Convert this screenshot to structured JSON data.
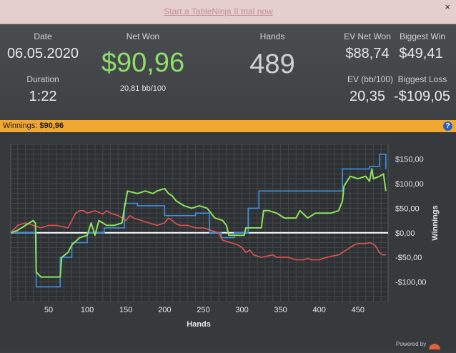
{
  "promo": {
    "link_text": "Start a TableNinja II trial now",
    "close_label": "×"
  },
  "stats": {
    "date_label": "Date",
    "date": "06.05.2020",
    "duration_label": "Duration",
    "duration": "1:22",
    "net_won_label": "Net Won",
    "net_won": "$90,96",
    "net_won_bb": "20,81 bb/100",
    "hands_label": "Hands",
    "hands": "489",
    "ev_net_won_label": "EV Net Won",
    "ev_net_won": "$88,74",
    "biggest_win_label": "Biggest Win",
    "biggest_win": "$49,41",
    "ev_bb_label": "EV (bb/100)",
    "ev_bb": "20,35",
    "biggest_loss_label": "Biggest Loss",
    "biggest_loss": "-$109,05",
    "net_won_color": "#8fdf6a"
  },
  "winnings_bar": {
    "label": "Winnings:",
    "value": "$90,96",
    "help_icon": "help-icon",
    "color": "#f0a832"
  },
  "chart_data": {
    "type": "line",
    "xlabel": "Hands",
    "ylabel": "Winnings",
    "xlim": [
      1,
      489
    ],
    "ylim": [
      -140,
      180
    ],
    "x_ticks": [
      50,
      100,
      150,
      200,
      250,
      300,
      350,
      400,
      450
    ],
    "x_tick_labels": [
      "50",
      "100",
      "150",
      "200",
      "250",
      "300",
      "350",
      "400",
      "450"
    ],
    "y_ticks": [
      150,
      100,
      50,
      0,
      -50,
      -100
    ],
    "y_tick_labels": [
      "$150,00",
      "$100,00",
      "$50,00",
      "$0,00",
      "-$50,00",
      "-$100,00"
    ],
    "grid": true,
    "legend": "none",
    "series": [
      {
        "color": "#8fe35a",
        "points": [
          [
            1,
            0
          ],
          [
            10,
            5
          ],
          [
            20,
            15
          ],
          [
            30,
            25
          ],
          [
            33,
            20
          ],
          [
            34,
            -80
          ],
          [
            40,
            -90
          ],
          [
            50,
            -90
          ],
          [
            65,
            -90
          ],
          [
            67,
            -50
          ],
          [
            75,
            -40
          ],
          [
            80,
            -25
          ],
          [
            90,
            -10
          ],
          [
            100,
            -5
          ],
          [
            105,
            20
          ],
          [
            110,
            -5
          ],
          [
            115,
            25
          ],
          [
            125,
            15
          ],
          [
            135,
            15
          ],
          [
            145,
            20
          ],
          [
            148,
            50
          ],
          [
            152,
            85
          ],
          [
            165,
            80
          ],
          [
            175,
            85
          ],
          [
            185,
            80
          ],
          [
            190,
            85
          ],
          [
            200,
            90
          ],
          [
            205,
            80
          ],
          [
            210,
            75
          ],
          [
            215,
            65
          ],
          [
            225,
            55
          ],
          [
            235,
            50
          ],
          [
            245,
            55
          ],
          [
            255,
            50
          ],
          [
            265,
            30
          ],
          [
            275,
            25
          ],
          [
            280,
            15
          ],
          [
            283,
            -5
          ],
          [
            295,
            -5
          ],
          [
            303,
            -5
          ],
          [
            305,
            10
          ],
          [
            315,
            10
          ],
          [
            325,
            10
          ],
          [
            328,
            45
          ],
          [
            335,
            45
          ],
          [
            345,
            40
          ],
          [
            355,
            30
          ],
          [
            360,
            30
          ],
          [
            370,
            30
          ],
          [
            375,
            45
          ],
          [
            385,
            30
          ],
          [
            395,
            40
          ],
          [
            405,
            40
          ],
          [
            415,
            40
          ],
          [
            425,
            45
          ],
          [
            430,
            65
          ],
          [
            432,
            95
          ],
          [
            440,
            115
          ],
          [
            450,
            110
          ],
          [
            460,
            115
          ],
          [
            465,
            105
          ],
          [
            468,
            130
          ],
          [
            470,
            110
          ],
          [
            478,
            115
          ],
          [
            483,
            120
          ],
          [
            486,
            85
          ]
        ]
      },
      {
        "color": "#3d92e0",
        "points": [
          [
            1,
            0
          ],
          [
            20,
            0
          ],
          [
            34,
            0
          ],
          [
            34,
            -110
          ],
          [
            45,
            -110
          ],
          [
            62,
            -110
          ],
          [
            65,
            -110
          ],
          [
            65,
            -50
          ],
          [
            80,
            -50
          ],
          [
            80,
            -20
          ],
          [
            100,
            -20
          ],
          [
            100,
            0
          ],
          [
            122,
            0
          ],
          [
            122,
            10
          ],
          [
            148,
            10
          ],
          [
            148,
            60
          ],
          [
            165,
            60
          ],
          [
            165,
            55
          ],
          [
            200,
            55
          ],
          [
            200,
            35
          ],
          [
            240,
            35
          ],
          [
            240,
            40
          ],
          [
            258,
            40
          ],
          [
            258,
            0
          ],
          [
            273,
            0
          ],
          [
            273,
            -10
          ],
          [
            290,
            -10
          ],
          [
            290,
            0
          ],
          [
            308,
            0
          ],
          [
            308,
            50
          ],
          [
            322,
            50
          ],
          [
            322,
            85
          ],
          [
            390,
            85
          ],
          [
            390,
            85
          ],
          [
            430,
            85
          ],
          [
            430,
            130
          ],
          [
            465,
            130
          ],
          [
            465,
            135
          ],
          [
            478,
            135
          ],
          [
            478,
            160
          ],
          [
            486,
            160
          ],
          [
            486,
            130
          ]
        ]
      },
      {
        "color": "#e05552",
        "points": [
          [
            1,
            0
          ],
          [
            10,
            15
          ],
          [
            20,
            20
          ],
          [
            30,
            15
          ],
          [
            40,
            10
          ],
          [
            50,
            15
          ],
          [
            60,
            15
          ],
          [
            70,
            12
          ],
          [
            75,
            10
          ],
          [
            80,
            25
          ],
          [
            85,
            40
          ],
          [
            90,
            45
          ],
          [
            95,
            45
          ],
          [
            100,
            40
          ],
          [
            110,
            45
          ],
          [
            120,
            38
          ],
          [
            125,
            45
          ],
          [
            130,
            40
          ],
          [
            140,
            35
          ],
          [
            145,
            30
          ],
          [
            150,
            25
          ],
          [
            155,
            35
          ],
          [
            160,
            30
          ],
          [
            170,
            25
          ],
          [
            180,
            20
          ],
          [
            190,
            15
          ],
          [
            200,
            20
          ],
          [
            205,
            30
          ],
          [
            210,
            25
          ],
          [
            215,
            18
          ],
          [
            220,
            15
          ],
          [
            230,
            15
          ],
          [
            240,
            10
          ],
          [
            250,
            10
          ],
          [
            260,
            5
          ],
          [
            270,
            0
          ],
          [
            275,
            -15
          ],
          [
            285,
            -20
          ],
          [
            295,
            -25
          ],
          [
            300,
            -30
          ],
          [
            305,
            -40
          ],
          [
            310,
            -35
          ],
          [
            315,
            -45
          ],
          [
            325,
            -50
          ],
          [
            340,
            -45
          ],
          [
            345,
            -50
          ],
          [
            360,
            -50
          ],
          [
            370,
            -55
          ],
          [
            380,
            -55
          ],
          [
            385,
            -52
          ],
          [
            390,
            -55
          ],
          [
            400,
            -55
          ],
          [
            405,
            -52
          ],
          [
            415,
            -48
          ],
          [
            425,
            -45
          ],
          [
            430,
            -40
          ],
          [
            435,
            -35
          ],
          [
            440,
            -30
          ],
          [
            445,
            -25
          ],
          [
            450,
            -22
          ],
          [
            460,
            -22
          ],
          [
            465,
            -20
          ],
          [
            472,
            -25
          ],
          [
            478,
            -40
          ],
          [
            482,
            -45
          ],
          [
            486,
            -45
          ]
        ]
      }
    ]
  },
  "footer": {
    "powered_by": "Powered by"
  }
}
